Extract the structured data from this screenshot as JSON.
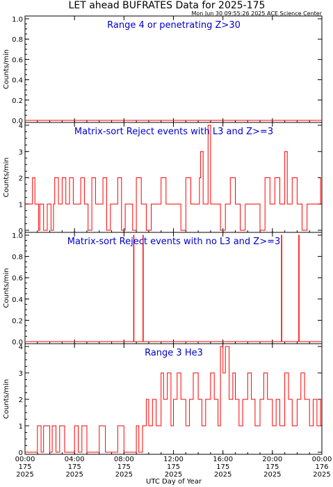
{
  "header": {
    "title": "LET ahead BUFRATES Data for 2025-175",
    "timestamp": "Mon Jun 30 09:55:26 2025 ACE Science Center"
  },
  "xaxis": {
    "label": "UTC Day of Year",
    "range": [
      0,
      24
    ],
    "ticks": [
      {
        "value": 0,
        "time": "00:00",
        "doy": "175",
        "year": "2025"
      },
      {
        "value": 4,
        "time": "04:00",
        "doy": "175",
        "year": "2025"
      },
      {
        "value": 8,
        "time": "08:00",
        "doy": "175",
        "year": "2025"
      },
      {
        "value": 12,
        "time": "12:00",
        "doy": "175",
        "year": "2025"
      },
      {
        "value": 16,
        "time": "16:00",
        "doy": "175",
        "year": "2025"
      },
      {
        "value": 20,
        "time": "20:00",
        "doy": "175",
        "year": "2025"
      },
      {
        "value": 24,
        "time": "00:00",
        "doy": "176",
        "year": "2025"
      }
    ]
  },
  "colors": {
    "data": "#ff0000",
    "panel_title": "#0000cc",
    "axes": "#000000"
  },
  "chart_data": [
    {
      "type": "line",
      "title": "Range 4 or  penetrating Z>30",
      "ylabel": "Counts/min",
      "ylim": [
        0,
        1
      ],
      "yticks": [
        "0.0",
        "0.2",
        "0.4",
        "0.6",
        "0.8",
        "1.0"
      ],
      "x": [
        0,
        24
      ],
      "values": [
        0,
        0
      ]
    },
    {
      "type": "line",
      "title": "Matrix-sort Reject events with L3 and Z>=3",
      "ylabel": "Counts/min",
      "ylim": [
        0,
        4
      ],
      "yticks": [
        "0",
        "1",
        "2",
        "3",
        "4"
      ],
      "x": [
        0,
        0.4,
        0.5,
        0.6,
        0.8,
        1.1,
        1.2,
        1.5,
        1.8,
        2.0,
        2.1,
        2.3,
        2.4,
        2.7,
        3.0,
        3.3,
        3.6,
        3.9,
        4.2,
        4.5,
        4.8,
        5.1,
        5.4,
        5.7,
        6.0,
        6.3,
        6.6,
        6.9,
        7.2,
        7.5,
        7.8,
        8.1,
        8.5,
        8.7,
        9.0,
        9.4,
        9.8,
        10.2,
        10.6,
        11.0,
        11.4,
        11.8,
        12.2,
        12.6,
        13.0,
        13.4,
        13.8,
        14.1,
        14.2,
        14.4,
        14.8,
        15.0,
        15.4,
        15.8,
        16.2,
        16.6,
        17.0,
        17.4,
        17.8,
        18.2,
        18.6,
        19.0,
        19.4,
        19.8,
        20.2,
        20.6,
        21.0,
        21.2,
        21.6,
        22.0,
        22.4,
        22.8,
        23.2,
        23.6,
        23.9
      ],
      "values": [
        1,
        1,
        1,
        2,
        1,
        0,
        1,
        0,
        1,
        1,
        0,
        1,
        2,
        1,
        2,
        1,
        2,
        1,
        1,
        2,
        1,
        0,
        2,
        1,
        1,
        2,
        0,
        1,
        1,
        2,
        0,
        1,
        1,
        0,
        2,
        1,
        0,
        1,
        1,
        2,
        1,
        1,
        1,
        0,
        2,
        1,
        1,
        2,
        3,
        1,
        4,
        1,
        1,
        0,
        1,
        2,
        1,
        0,
        1,
        1,
        1,
        0,
        2,
        1,
        2,
        1,
        3,
        1,
        2,
        1,
        0,
        1,
        1,
        1,
        2
      ]
    },
    {
      "type": "line",
      "title": "Matrix-sort Reject events with no L3 and Z>=3",
      "ylabel": "Counts/min",
      "ylim": [
        0,
        1
      ],
      "yticks": [
        "0.0",
        "0.2",
        "0.4",
        "0.6",
        "0.8",
        "1.0"
      ],
      "x": [
        0,
        8.75,
        8.78,
        8.81,
        9.5,
        9.53,
        9.56,
        20.7,
        20.73,
        20.76,
        22.1,
        22.13,
        22.16,
        24
      ],
      "values": [
        0,
        0,
        1,
        0,
        0,
        1,
        0,
        0,
        1,
        0,
        0,
        1,
        0,
        0
      ]
    },
    {
      "type": "line",
      "title": "Range 3 He3",
      "ylabel": "Counts/min",
      "ylim": [
        0,
        4
      ],
      "yticks": [
        "0",
        "1",
        "2",
        "3",
        "4"
      ],
      "x": [
        0,
        1.0,
        1.3,
        1.5,
        2.0,
        2.2,
        2.5,
        2.8,
        3.2,
        3.5,
        4.0,
        4.3,
        4.6,
        5.0,
        5.5,
        6.0,
        6.5,
        7.0,
        7.5,
        8.0,
        8.5,
        9.0,
        9.2,
        9.5,
        9.8,
        10.0,
        10.3,
        10.6,
        11.0,
        11.2,
        11.5,
        11.8,
        12.0,
        12.3,
        12.6,
        13.0,
        13.3,
        13.6,
        14.0,
        14.3,
        14.6,
        15.0,
        15.3,
        15.6,
        15.8,
        16.0,
        16.2,
        16.5,
        16.8,
        17.0,
        17.3,
        17.6,
        18.0,
        18.3,
        18.6,
        19.0,
        19.3,
        19.6,
        20.0,
        20.3,
        20.6,
        21.0,
        21.3,
        21.6,
        22.0,
        22.3,
        22.6,
        23.0,
        23.3,
        23.6,
        23.9
      ],
      "values": [
        0,
        1,
        0,
        1,
        0,
        1,
        0,
        1,
        0,
        0,
        1,
        0,
        1,
        0,
        0,
        1,
        0,
        0,
        1,
        0,
        0,
        1,
        0,
        1,
        2,
        1,
        2,
        1,
        3,
        2,
        3,
        1,
        2,
        3,
        2,
        1,
        2,
        3,
        2,
        1,
        2,
        3,
        2,
        1,
        4,
        3,
        4,
        2,
        3,
        2,
        1,
        2,
        3,
        2,
        1,
        2,
        3,
        2,
        1,
        2,
        1,
        3,
        2,
        1,
        2,
        3,
        2,
        1,
        2,
        1,
        2
      ]
    }
  ]
}
